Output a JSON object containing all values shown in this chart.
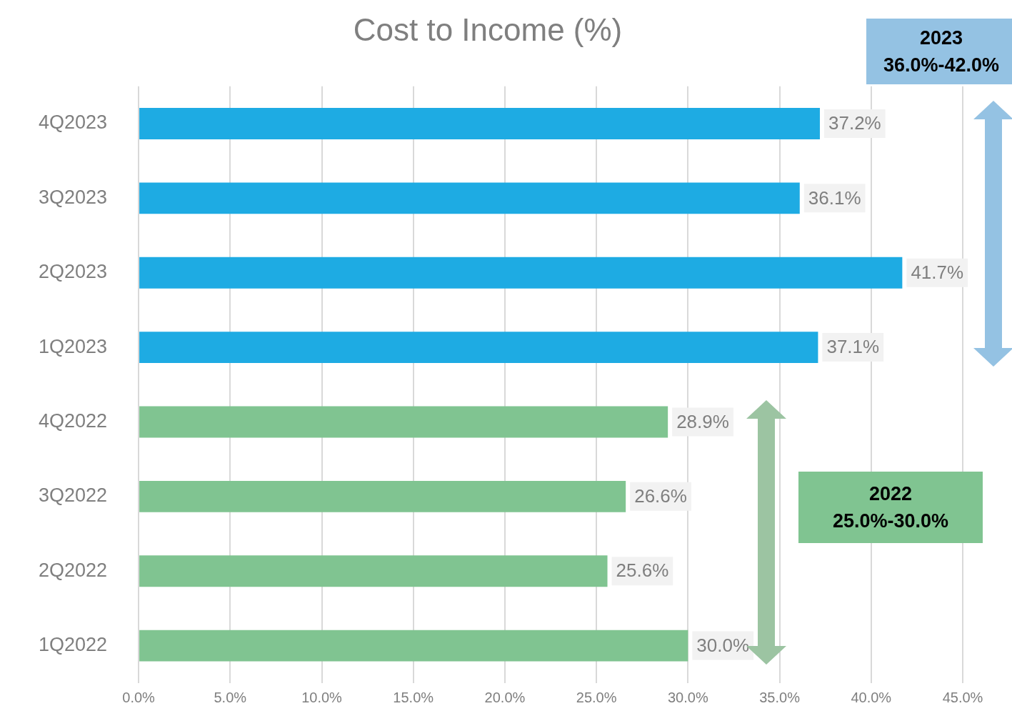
{
  "chart_data": {
    "type": "bar",
    "orientation": "horizontal",
    "title": "Cost to Income (%)",
    "categories": [
      "4Q2023",
      "3Q2023",
      "2Q2023",
      "1Q2023",
      "4Q2022",
      "3Q2022",
      "2Q2022",
      "1Q2022"
    ],
    "values": [
      37.2,
      36.1,
      41.7,
      37.1,
      28.9,
      26.6,
      25.6,
      30.0
    ],
    "colors": [
      "#1eabe3",
      "#1eabe3",
      "#1eabe3",
      "#1eabe3",
      "#80c491",
      "#80c491",
      "#80c491",
      "#80c491"
    ],
    "value_labels": [
      "37.2%",
      "36.1%",
      "41.7%",
      "37.1%",
      "28.9%",
      "26.6%",
      "25.6%",
      "30.0%"
    ],
    "xlim": [
      0,
      45
    ],
    "xticks": [
      {
        "value": 0,
        "label": "0.0%"
      },
      {
        "value": 5,
        "label": "5.0%"
      },
      {
        "value": 10,
        "label": "10.0%"
      },
      {
        "value": 15,
        "label": "15.0%"
      },
      {
        "value": 20,
        "label": "20.0%"
      },
      {
        "value": 25,
        "label": "25.0%"
      },
      {
        "value": 30,
        "label": "30.0%"
      },
      {
        "value": 35,
        "label": "35.0%"
      },
      {
        "value": 40,
        "label": "40.0%"
      },
      {
        "value": 45,
        "label": "45.0%"
      }
    ],
    "grid": "x",
    "legend": false,
    "annotations": [
      "2023\n36.0%-42.0%",
      "2022\n25.0%-30.0%"
    ]
  }
}
